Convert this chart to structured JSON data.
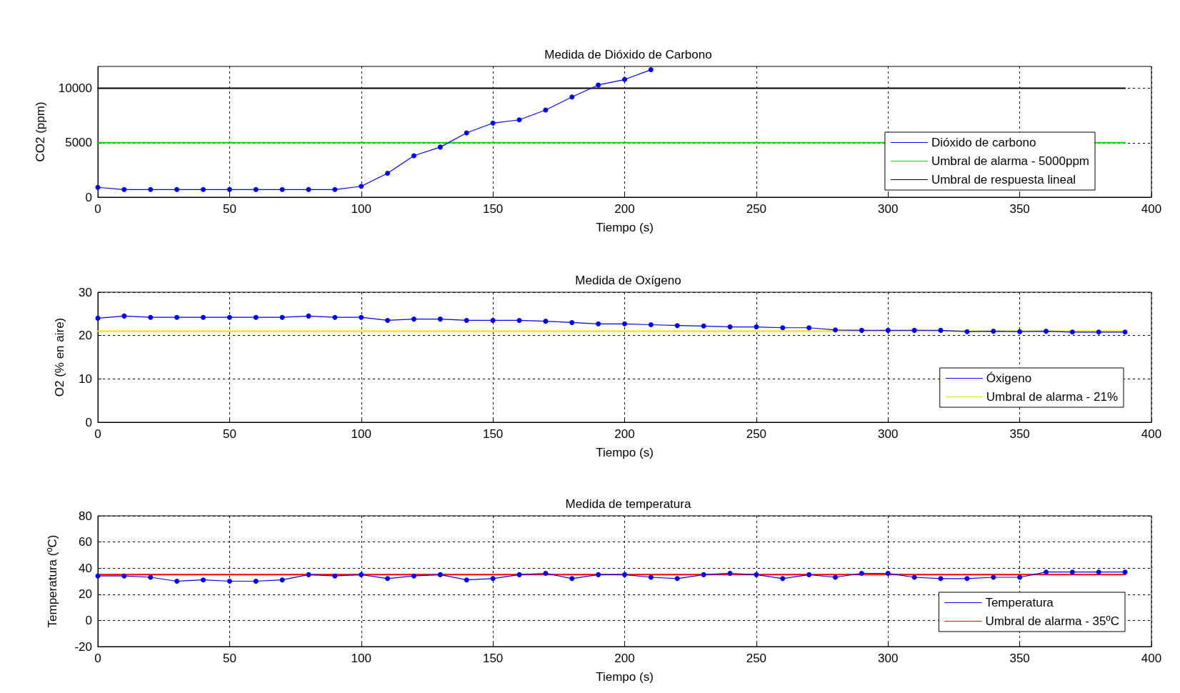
{
  "chart_data": [
    {
      "type": "line",
      "title": "Medida de Dióxido de Carbono",
      "xlabel": "Tiempo (s)",
      "ylabel": "CO2 (ppm)",
      "xlim": [
        0,
        400
      ],
      "xticks": [
        0,
        50,
        100,
        150,
        200,
        250,
        300,
        350,
        400
      ],
      "ylim": [
        0,
        12000
      ],
      "yticks": [
        0,
        5000,
        10000
      ],
      "grid": true,
      "legend": "right",
      "series": [
        {
          "name": "Dióxido de carbono",
          "color": "#0000ff",
          "marker": "circle",
          "x": [
            0,
            10,
            20,
            30,
            40,
            50,
            60,
            70,
            80,
            90,
            100,
            110,
            120,
            130,
            140,
            150,
            160,
            170,
            180,
            190,
            200,
            210
          ],
          "values": [
            900,
            700,
            700,
            700,
            700,
            700,
            700,
            700,
            700,
            700,
            1000,
            2200,
            3800,
            4600,
            5900,
            6800,
            7100,
            8000,
            9200,
            10300,
            10800,
            11700
          ]
        },
        {
          "name": "Umbral de alarma - 5000ppm",
          "color": "#00dd00",
          "marker": "none",
          "x": [
            0,
            390
          ],
          "values": [
            5000,
            5000
          ]
        },
        {
          "name": "Umbral de respuesta lineal",
          "color": "#000000",
          "marker": "none",
          "x": [
            0,
            390
          ],
          "values": [
            10000,
            10000
          ]
        }
      ]
    },
    {
      "type": "line",
      "title": "Medida de Oxígeno",
      "xlabel": "Tiempo (s)",
      "ylabel": "O2 (% en aire)",
      "xlim": [
        0,
        400
      ],
      "xticks": [
        0,
        50,
        100,
        150,
        200,
        250,
        300,
        350,
        400
      ],
      "ylim": [
        0,
        30
      ],
      "yticks": [
        0,
        10,
        20,
        30
      ],
      "grid": true,
      "legend": "bottom right",
      "series": [
        {
          "name": "Óxigeno",
          "color": "#0000ff",
          "marker": "circle",
          "x": [
            0,
            10,
            20,
            30,
            40,
            50,
            60,
            70,
            80,
            90,
            100,
            110,
            120,
            130,
            140,
            150,
            160,
            170,
            180,
            190,
            200,
            210,
            220,
            230,
            240,
            250,
            260,
            270,
            280,
            290,
            300,
            310,
            320,
            330,
            340,
            350,
            360,
            370,
            380,
            390
          ],
          "values": [
            24,
            24.5,
            24.2,
            24.2,
            24.2,
            24.2,
            24.2,
            24.2,
            24.5,
            24.2,
            24.2,
            23.5,
            23.8,
            23.8,
            23.5,
            23.5,
            23.5,
            23.3,
            23,
            22.7,
            22.7,
            22.5,
            22.3,
            22.2,
            22,
            22,
            21.8,
            21.8,
            21.3,
            21.2,
            21.2,
            21.2,
            21.2,
            20.9,
            21,
            20.9,
            21,
            20.8,
            20.8,
            20.8
          ]
        },
        {
          "name": "Umbral de alarma - 21%",
          "color": "#f0e000",
          "marker": "none",
          "x": [
            0,
            390
          ],
          "values": [
            21,
            21
          ]
        }
      ]
    },
    {
      "type": "line",
      "title": "Medida de temperatura",
      "xlabel": "Tiempo (s)",
      "ylabel": "Temperatura (ºC)",
      "xlim": [
        0,
        400
      ],
      "xticks": [
        0,
        50,
        100,
        150,
        200,
        250,
        300,
        350,
        400
      ],
      "ylim": [
        -20,
        80
      ],
      "yticks": [
        -20,
        0,
        20,
        40,
        60,
        80
      ],
      "grid": true,
      "legend": "bottom right",
      "series": [
        {
          "name": "Temperatura",
          "color": "#0000ff",
          "marker": "circle",
          "x": [
            0,
            10,
            20,
            30,
            40,
            50,
            60,
            70,
            80,
            90,
            100,
            110,
            120,
            130,
            140,
            150,
            160,
            170,
            180,
            190,
            200,
            210,
            220,
            230,
            240,
            250,
            260,
            270,
            280,
            290,
            300,
            310,
            320,
            330,
            340,
            350,
            360,
            370,
            380,
            390
          ],
          "values": [
            34,
            34,
            33,
            30,
            31,
            30,
            30,
            31,
            35,
            34,
            35,
            32,
            34,
            35,
            31,
            32,
            35,
            36,
            32,
            35,
            35,
            33,
            32,
            35,
            36,
            35,
            32,
            35,
            33,
            36,
            36,
            33,
            32,
            32,
            33,
            33,
            37,
            37,
            37,
            37
          ]
        },
        {
          "name": "Umbral de alarma - 35ºC",
          "color": "#ff0000",
          "marker": "none",
          "x": [
            0,
            390
          ],
          "values": [
            35,
            35
          ]
        }
      ]
    }
  ]
}
